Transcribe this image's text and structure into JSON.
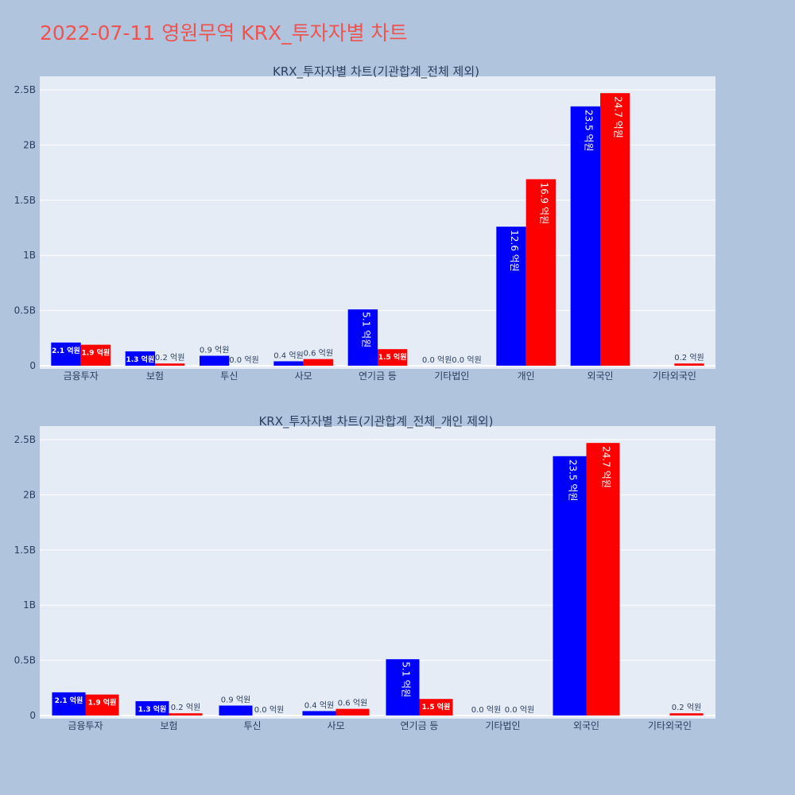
{
  "title": "2022-07-11 영원무역 KRX_투자자별 차트",
  "colors": {
    "page_bg": "#b0c4de",
    "plot_bg": "#e5ecf6",
    "grid": "#ffffff",
    "series_a": "#0000ff",
    "series_b": "#ff0000",
    "title": "#ef5350"
  },
  "chart_data": [
    {
      "type": "bar",
      "title": "KRX_투자자별 차트(기관합계_전체 제외)",
      "categories": [
        "금융투자",
        "보험",
        "투신",
        "사모",
        "연기금 등",
        "기타법인",
        "개인",
        "외국인",
        "기타외국인"
      ],
      "yticks": [
        "0",
        "0.5B",
        "1B",
        "1.5B",
        "2B",
        "2.5B"
      ],
      "ylim": [
        0,
        2.55
      ],
      "y_unit": "B",
      "grid": true,
      "series": [
        {
          "color": "#0000ff",
          "values": [
            0.21,
            0.13,
            0.09,
            0.04,
            0.51,
            0.0,
            1.26,
            2.35,
            0.0
          ],
          "labels": [
            "2.1 억원",
            "1.3 억원",
            "0.9 억원",
            "0.4 억원",
            "5.1 억원",
            "0.0 억원",
            "12.6 억원",
            "23.5 억원",
            ""
          ]
        },
        {
          "color": "#ff0000",
          "values": [
            0.19,
            0.02,
            0.0,
            0.06,
            0.15,
            0.0,
            1.69,
            2.47,
            0.02
          ],
          "labels": [
            "1.9 억원",
            "0.2 억원",
            "0.0 억원",
            "0.6 억원",
            "1.5 억원",
            "0.0 억원",
            "16.9 억원",
            "24.7 억원",
            "0.2 억원"
          ]
        }
      ]
    },
    {
      "type": "bar",
      "title": "KRX_투자자별 차트(기관합계_전체_개인 제외)",
      "categories": [
        "금융투자",
        "보험",
        "투신",
        "사모",
        "연기금 등",
        "기타법인",
        "외국인",
        "기타외국인"
      ],
      "yticks": [
        "0",
        "0.5B",
        "1B",
        "1.5B",
        "2B",
        "2.5B"
      ],
      "ylim": [
        0,
        2.55
      ],
      "y_unit": "B",
      "grid": true,
      "series": [
        {
          "color": "#0000ff",
          "values": [
            0.21,
            0.13,
            0.09,
            0.04,
            0.51,
            0.0,
            2.35,
            0.0
          ],
          "labels": [
            "2.1 억원",
            "1.3 억원",
            "0.9 억원",
            "0.4 억원",
            "5.1 억원",
            "0.0 억원",
            "23.5 억원",
            ""
          ]
        },
        {
          "color": "#ff0000",
          "values": [
            0.19,
            0.02,
            0.0,
            0.06,
            0.15,
            0.0,
            2.47,
            0.02
          ],
          "labels": [
            "1.9 억원",
            "0.2 억원",
            "0.0 억원",
            "0.6 억원",
            "1.5 억원",
            "0.0 억원",
            "24.7 억원",
            "0.2 억원"
          ]
        }
      ]
    }
  ]
}
